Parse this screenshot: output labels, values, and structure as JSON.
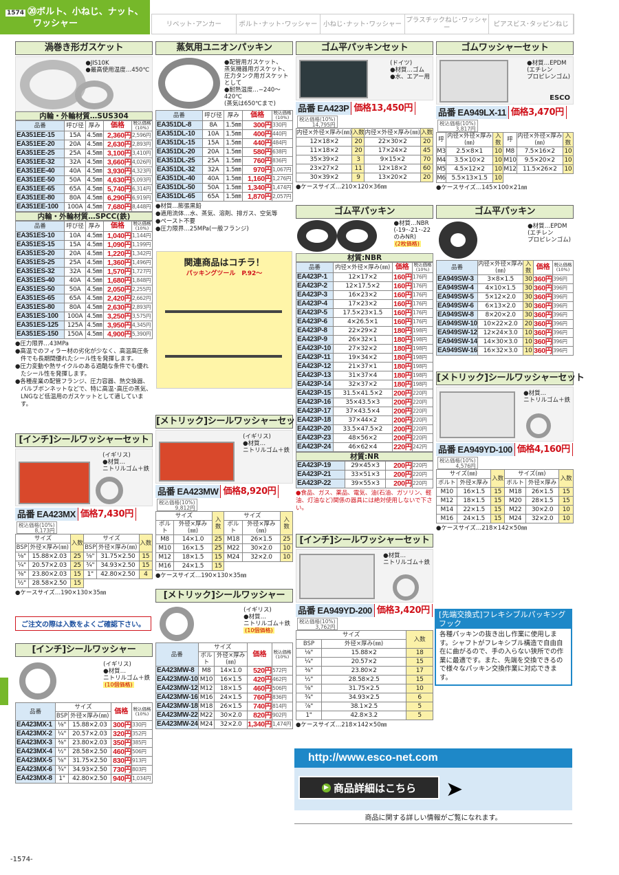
{
  "header": {
    "page": "1574",
    "category": "⑳ボルト、小ねじ、ナット、",
    "category2": "ワッシャー"
  },
  "nav": [
    "リベット･アンカー",
    "ボルト･ナット･ワッシャー",
    "小ねじ･ナット･ワッシャー",
    "プラスチックねじ･ワッシャー",
    "ピアスビス･タッピンねじ"
  ],
  "gasket": {
    "title": "渦巻き形ガスケット",
    "notes": [
      "●JIS10K",
      "●最高使用温度…450℃"
    ],
    "img_labels": [
      "EE",
      "ES"
    ],
    "sub1": "内輪・外輪材質…SUS304",
    "sub2": "内輪・外輪材質…SPCC(鉄)",
    "cols": [
      "品番",
      "呼び径",
      "厚み",
      "価格",
      "税込価格(10%)"
    ],
    "rows1": [
      [
        "EA351EE-15",
        "15A",
        "4.5㎜",
        "2,360円",
        "2,596円"
      ],
      [
        "EA351EE-20",
        "20A",
        "4.5㎜",
        "2,630円",
        "2,893円"
      ],
      [
        "EA351EE-25",
        "25A",
        "4.5㎜",
        "3,100円",
        "3,410円"
      ],
      [
        "EA351EE-32",
        "32A",
        "4.5㎜",
        "3,660円",
        "4,026円"
      ],
      [
        "EA351EE-40",
        "40A",
        "4.5㎜",
        "3,930円",
        "4,323円"
      ],
      [
        "EA351EE-50",
        "50A",
        "4.5㎜",
        "4,630円",
        "5,093円"
      ],
      [
        "EA351EE-65",
        "65A",
        "4.5㎜",
        "5,740円",
        "6,314円"
      ],
      [
        "EA351EE-80",
        "80A",
        "4.5㎜",
        "6,290円",
        "6,919円"
      ],
      [
        "EA351EE-100",
        "100A",
        "4.5㎜",
        "7,680円",
        "8,448円"
      ]
    ],
    "rows2": [
      [
        "EA351ES-10",
        "10A",
        "4.5㎜",
        "1,040円",
        "1,144円"
      ],
      [
        "EA351ES-15",
        "15A",
        "4.5㎜",
        "1,090円",
        "1,199円"
      ],
      [
        "EA351ES-20",
        "20A",
        "4.5㎜",
        "1,220円",
        "1,342円"
      ],
      [
        "EA351ES-25",
        "25A",
        "4.5㎜",
        "1,360円",
        "1,496円"
      ],
      [
        "EA351ES-32",
        "32A",
        "4.5㎜",
        "1,570円",
        "1,727円"
      ],
      [
        "EA351ES-40",
        "40A",
        "4.5㎜",
        "1,680円",
        "1,848円"
      ],
      [
        "EA351ES-50",
        "50A",
        "4.5㎜",
        "2,050円",
        "2,255円"
      ],
      [
        "EA351ES-65",
        "65A",
        "4.5㎜",
        "2,420円",
        "2,662円"
      ],
      [
        "EA351ES-80",
        "80A",
        "4.5㎜",
        "2,630円",
        "2,893円"
      ],
      [
        "EA351ES-100",
        "100A",
        "4.5㎜",
        "3,250円",
        "3,575円"
      ],
      [
        "EA351ES-125",
        "125A",
        "4.5㎜",
        "3,950円",
        "4,345円"
      ],
      [
        "EA351ES-150",
        "150A",
        "4.5㎜",
        "4,900円",
        "5,390円"
      ]
    ],
    "bullets": [
      "●圧力限界…43MPa",
      "●高温でのフィラー材の劣化が少なく、高温高圧条件でも長期間優れたシール性を発揮します。",
      "●圧力変動や熱サイクルのある過酷な条件でも優れたシール性を発揮します。",
      "●各種産業の配管フランジ、圧力容器、熱交換器、バルブボンネットなどで、特に高温･高圧の蒸気、LNGなど低温用のガスケットとして適しています。"
    ]
  },
  "union": {
    "title": "蒸気用ユニオンパッキン",
    "notes": [
      "●配管用ガスケット、",
      "蒸気機器用ガスケット、",
      "圧力タンク用ガスケット",
      "として",
      "●耐熱温度…−240〜420℃",
      "(蒸気は650℃まで)"
    ],
    "cols": [
      "品番",
      "呼び径",
      "厚み",
      "価格",
      "税込価格(10%)"
    ],
    "rows": [
      [
        "EA351DL-8",
        "8A",
        "1.5㎜",
        "300円",
        "330円"
      ],
      [
        "EA351DL-10",
        "10A",
        "1.5㎜",
        "400円",
        "440円"
      ],
      [
        "EA351DL-15",
        "15A",
        "1.5㎜",
        "440円",
        "484円"
      ],
      [
        "EA351DL-20",
        "20A",
        "1.5㎜",
        "580円",
        "638円"
      ],
      [
        "EA351DL-25",
        "25A",
        "1.5㎜",
        "760円",
        "836円"
      ],
      [
        "EA351DL-32",
        "32A",
        "1.5㎜",
        "970円",
        "1,067円"
      ],
      [
        "EA351DL-40",
        "40A",
        "1.5㎜",
        "1,160円",
        "1,276円"
      ],
      [
        "EA351DL-50",
        "50A",
        "1.5㎜",
        "1,340円",
        "1,474円"
      ],
      [
        "EA351DL-65",
        "65A",
        "1.5㎜",
        "1,870円",
        "2,057円"
      ]
    ],
    "bullets": [
      "●材質…膨張黒鉛",
      "●適用流体…水、蒸気、溶剤、排ガス、空気等",
      "●ペースト不要",
      "●圧力限界…25MPa(一般フランジ)"
    ]
  },
  "related": {
    "title": "関連商品はコチラ！",
    "sub": "パッキングツール　P.92〜"
  },
  "packset": {
    "title": "ゴム平パッキンセット",
    "origin": "(ドイツ)",
    "notes": [
      "●材質…ゴム",
      "●水、エアー用"
    ],
    "pn_label": "品番",
    "pn": "EA423P",
    "price_label": "価格",
    "price": "13,450円",
    "tax_label": "税込価格(10%)",
    "tax": "14,795円",
    "cols": [
      "内径×外径×厚み(㎜)",
      "入数",
      "内径×外径×厚み(㎜)",
      "入数"
    ],
    "rows": [
      [
        "12×18×2",
        "20",
        "22×30×2",
        "20"
      ],
      [
        "11×18×2",
        "20",
        "17×24×2",
        "45"
      ],
      [
        "35×39×2",
        "3",
        "9×15×2",
        "70"
      ],
      [
        "23×27×2",
        "11",
        "12×18×2",
        "60"
      ],
      [
        "30×39×2",
        "9",
        "13×20×2",
        "20"
      ]
    ],
    "case": "●ケースサイズ…210×120×36㎜"
  },
  "washerset": {
    "title": "ゴムワッシャーセット",
    "notes": [
      "●材質…EPDM",
      "(エチレン",
      "プロピレンゴム)"
    ],
    "brand": "ESCO",
    "pn_label": "品番",
    "pn": "EA949LX-11",
    "price_label": "価格",
    "price": "3,470円",
    "tax_label": "税込価格(10%)",
    "tax": "3,817円",
    "cols": [
      "呼",
      "内径×外径×厚み(㎜)",
      "入数",
      "呼",
      "内径×外径×厚み(㎜)",
      "入数"
    ],
    "rows": [
      [
        "M3",
        "2.5×8×1",
        "10",
        "M8",
        "7.5×16×2",
        "10"
      ],
      [
        "M4",
        "3.5×10×2",
        "10",
        "M10",
        "9.5×20×2",
        "10"
      ],
      [
        "M5",
        "4.5×12×2",
        "10",
        "M12",
        "11.5×26×2",
        "10"
      ],
      [
        "M6",
        "5.5×13×1.5",
        "10",
        "",
        "",
        ""
      ]
    ],
    "case": "●ケースサイズ…145×100×21㎜"
  },
  "flatpack": {
    "title": "ゴム平パッキン",
    "notes": [
      "●材質…NBR",
      "(-19･-21･-22",
      "のみNR)"
    ],
    "badge": "(2枚価格)",
    "mat1": "材質:NBR",
    "mat2": "材質:NR",
    "cols": [
      "品番",
      "内径×外径×厚み(㎜)",
      "価格",
      "税込価格(10%)"
    ],
    "rows1": [
      [
        "EA423P-1",
        "12×17×2",
        "160円",
        "176円"
      ],
      [
        "EA423P-2",
        "12×17.5×2",
        "160円",
        "176円"
      ],
      [
        "EA423P-3",
        "16×23×2",
        "160円",
        "176円"
      ],
      [
        "EA423P-4",
        "17×23×2",
        "160円",
        "176円"
      ],
      [
        "EA423P-5",
        "17.5×23×1.5",
        "160円",
        "176円"
      ],
      [
        "EA423P-6",
        "4×26.5×1",
        "160円",
        "176円"
      ],
      [
        "EA423P-8",
        "22×29×2",
        "180円",
        "198円"
      ],
      [
        "EA423P-9",
        "26×32×1",
        "180円",
        "198円"
      ],
      [
        "EA423P-10",
        "27×32×2",
        "180円",
        "198円"
      ],
      [
        "EA423P-11",
        "19×34×2",
        "180円",
        "198円"
      ],
      [
        "EA423P-12",
        "21×37×1",
        "180円",
        "198円"
      ],
      [
        "EA423P-13",
        "31×37×4",
        "180円",
        "198円"
      ],
      [
        "EA423P-14",
        "32×37×2",
        "180円",
        "198円"
      ],
      [
        "EA423P-15",
        "31.5×41.5×2",
        "200円",
        "220円"
      ],
      [
        "EA423P-16",
        "35×43.5×3",
        "200円",
        "220円"
      ],
      [
        "EA423P-17",
        "37×43.5×4",
        "200円",
        "220円"
      ],
      [
        "EA423P-18",
        "37×44×2",
        "200円",
        "220円"
      ],
      [
        "EA423P-20",
        "33.5×47.5×2",
        "200円",
        "220円"
      ],
      [
        "EA423P-23",
        "48×56×2",
        "200円",
        "220円"
      ],
      [
        "EA423P-24",
        "46×62×4",
        "220円",
        "242円"
      ]
    ],
    "rows2": [
      [
        "EA423P-19",
        "29×45×3",
        "200円",
        "220円"
      ],
      [
        "EA423P-21",
        "33×51×3",
        "200円",
        "220円"
      ],
      [
        "EA423P-22",
        "39×55×3",
        "200円",
        "220円"
      ]
    ],
    "warn": "●食品、ガス、薬品、電気、油(石油、ガソリン、軽油、灯油など)関係の器具には絶対使用しないで下さい。"
  },
  "epdmpack": {
    "title": "ゴム平パッキン",
    "notes": [
      "●材質…EPDM",
      "(エチレン",
      "プロピレンゴム)"
    ],
    "cols": [
      "品番",
      "内径×外径×厚み(㎜)",
      "入数",
      "価格",
      "税込価格(10%)"
    ],
    "rows": [
      [
        "EA949SW-3",
        "3×8×1.5",
        "30",
        "360円",
        "396円"
      ],
      [
        "EA949SW-4",
        "4×10×1.5",
        "30",
        "360円",
        "396円"
      ],
      [
        "EA949SW-5",
        "5×12×2.0",
        "30",
        "360円",
        "396円"
      ],
      [
        "EA949SW-6",
        "6×13×2.0",
        "30",
        "360円",
        "396円"
      ],
      [
        "EA949SW-8",
        "8×20×2.0",
        "30",
        "360円",
        "396円"
      ],
      [
        "EA949SW-10",
        "10×22×2.0",
        "20",
        "360円",
        "396円"
      ],
      [
        "EA949SW-12",
        "12×24×3.0",
        "10",
        "360円",
        "396円"
      ],
      [
        "EA949SW-14",
        "14×30×3.0",
        "10",
        "360円",
        "396円"
      ],
      [
        "EA949SW-16",
        "16×32×3.0",
        "10",
        "360円",
        "396円"
      ]
    ]
  },
  "inchset": {
    "title": "[インチ]シールワッシャーセット",
    "origin": "(イギリス)",
    "notes": [
      "●材質…",
      "ニトリルゴム＋鉄"
    ],
    "pn_label": "品番",
    "pn": "EA423MX",
    "price_label": "価格",
    "price": "7,430円",
    "tax_label": "税込価格(10%)",
    "tax": "8,173円",
    "top": [
      "サイズ",
      "入数",
      "サイズ",
      "入数"
    ],
    "cols": [
      "BSP",
      "外径×厚み(㎜)",
      "BSP",
      "外径×厚み(㎜)"
    ],
    "rows": [
      [
        "⅛\"",
        "15.88×2.03",
        "25",
        "⅝\"",
        "31.75×2.50",
        "15"
      ],
      [
        "¼\"",
        "20.57×2.03",
        "25",
        "¾\"",
        "34.93×2.50",
        "15"
      ],
      [
        "⅜\"",
        "23.80×2.03",
        "15",
        "1\"",
        "42.80×2.50",
        "4"
      ],
      [
        "½\"",
        "28.58×2.50",
        "15",
        "",
        "",
        ""
      ]
    ],
    "case": "●ケースサイズ…190×130×35㎜",
    "attention": "ご注文の際は入数をよくご確認下さい。"
  },
  "metset": {
    "title": "[メトリック]シールワッシャーセット",
    "origin": "(イギリス)",
    "notes": [
      "●材質…",
      "ニトリルゴム＋鉄"
    ],
    "pn_label": "品番",
    "pn": "EA423MW",
    "price_label": "価格",
    "price": "8,920円",
    "tax_label": "税込価格(10%)",
    "tax": "9,812円",
    "top": [
      "サイズ",
      "入数",
      "サイズ",
      "入数"
    ],
    "cols": [
      "ボルト",
      "外径×厚み(㎜)",
      "ボルト",
      "外径×厚み(㎜)"
    ],
    "rows": [
      [
        "M8",
        "14×1.0",
        "25",
        "M18",
        "26×1.5",
        "25"
      ],
      [
        "M10",
        "16×1.5",
        "25",
        "M22",
        "30×2.0",
        "10"
      ],
      [
        "M12",
        "18×1.5",
        "15",
        "M24",
        "32×2.0",
        "10"
      ],
      [
        "M16",
        "24×1.5",
        "15",
        "",
        "",
        ""
      ]
    ],
    "case": "●ケースサイズ…190×130×35㎜"
  },
  "metset2": {
    "title": "[メトリック]シールワッシャーセット",
    "notes": [
      "●材質…",
      "ニトリルゴム＋鉄"
    ],
    "pn_label": "品番",
    "pn": "EA949YD-100",
    "price_label": "価格",
    "price": "4,160円",
    "tax_label": "税込価格(10%)",
    "tax": "4,576円",
    "top": [
      "サイズ(㎜)",
      "入数",
      "サイズ(㎜)",
      "入数"
    ],
    "cols": [
      "ボルト",
      "外径×厚み",
      "ボルト",
      "外径×厚み"
    ],
    "rows": [
      [
        "M10",
        "16×1.5",
        "15",
        "M18",
        "26×1.5",
        "15"
      ],
      [
        "M12",
        "18×1.5",
        "15",
        "M20",
        "28×1.5",
        "15"
      ],
      [
        "M14",
        "22×1.5",
        "15",
        "M22",
        "30×2.0",
        "10"
      ],
      [
        "M16",
        "24×1.5",
        "15",
        "M24",
        "32×2.0",
        "10"
      ]
    ],
    "case": "●ケースサイズ…218×142×50㎜"
  },
  "inchset2": {
    "title": "[インチ]シールワッシャーセット",
    "notes": [
      "●材質…",
      "ニトリルゴム＋鉄"
    ],
    "pn_label": "品番",
    "pn": "EA949YD-200",
    "price_label": "価格",
    "price": "3,420円",
    "tax_label": "税込価格(10%)",
    "tax": "3,762円",
    "top": [
      "サイズ",
      "入数"
    ],
    "cols": [
      "BSP",
      "外径×厚み(㎜)"
    ],
    "rows": [
      [
        "⅛\"",
        "15.88×2",
        "18"
      ],
      [
        "¼\"",
        "20.57×2",
        "15"
      ],
      [
        "⅜\"",
        "23.80×2",
        "17"
      ],
      [
        "½\"",
        "28.58×2.5",
        "15"
      ],
      [
        "⅝\"",
        "31.75×2.5",
        "10"
      ],
      [
        "¾\"",
        "34.93×2.5",
        "6"
      ],
      [
        "⅞\"",
        "38.1×2.5",
        "5"
      ],
      [
        "1\"",
        "42.8×3.2",
        "5"
      ]
    ],
    "case": "●ケースサイズ…218×142×50㎜"
  },
  "metwasher": {
    "title": "[メトリック]シールワッシャー",
    "origin": "(イギリス)",
    "notes": [
      "●材質…",
      "ニトリルゴム＋鉄"
    ],
    "badge": "(10個価格)",
    "top": [
      "品番",
      "サイズ",
      "価格",
      "税込価格(10%)"
    ],
    "cols": [
      "ボルト",
      "外径×厚み(㎜)"
    ],
    "rows": [
      [
        "EA423MW-8",
        "M8",
        "14×1.0",
        "520円",
        "572円"
      ],
      [
        "EA423MW-10",
        "M10",
        "16×1.5",
        "420円",
        "462円"
      ],
      [
        "EA423MW-12",
        "M12",
        "18×1.5",
        "460円",
        "506円"
      ],
      [
        "EA423MW-16",
        "M16",
        "24×1.5",
        "760円",
        "836円"
      ],
      [
        "EA423MW-18",
        "M18",
        "26×1.5",
        "740円",
        "814円"
      ],
      [
        "EA423MW-22",
        "M22",
        "30×2.0",
        "820円",
        "902円"
      ],
      [
        "EA423MW-24",
        "M24",
        "32×2.0",
        "1,340円",
        "1,474円"
      ]
    ]
  },
  "inchwasher": {
    "title": "[インチ]シールワッシャー",
    "origin": "(イギリス)",
    "notes": [
      "●材質…",
      "ニトリルゴム＋鉄"
    ],
    "badge": "(10個価格)",
    "top": [
      "品番",
      "サイズ",
      "価格",
      "税込価格(10%)"
    ],
    "cols": [
      "BSP",
      "外径×厚み(㎜)"
    ],
    "rows": [
      [
        "EA423MX-1",
        "⅛\"",
        "15.88×2.03",
        "300円",
        "330円"
      ],
      [
        "EA423MX-2",
        "¼\"",
        "20.57×2.03",
        "320円",
        "352円"
      ],
      [
        "EA423MX-3",
        "⅜\"",
        "23.80×2.03",
        "350円",
        "385円"
      ],
      [
        "EA423MX-4",
        "½\"",
        "28.58×2.50",
        "460円",
        "506円"
      ],
      [
        "EA423MX-5",
        "⅝\"",
        "31.75×2.50",
        "830円",
        "913円"
      ],
      [
        "EA423MX-6",
        "¾\"",
        "34.93×2.50",
        "730円",
        "803円"
      ],
      [
        "EA423MX-8",
        "1\"",
        "42.80×2.50",
        "940円",
        "1,034円"
      ]
    ]
  },
  "hook": {
    "title": "[先端交換式]フレキシブルパッキングフック",
    "body": "各種パッキンの抜き出し作業に使用します。シャフトがフレキシブル構造で自由自在に曲がるので、手の入らない狭所での作業に最適です。また、先端を交換できるので様々なパッキン交換作業に対応できます。"
  },
  "footer": {
    "url": "http://www.esco-net.com",
    "button": "商品詳細はこちら",
    "info": "商品に関する詳しい情報がご覧になれます。",
    "page_number": "-1574-"
  },
  "colors": {
    "accent_green": "#76b82a",
    "price_red": "#d0121b",
    "pn_blue": "#d7e8f6",
    "qty_yellow": "#fbf1a8",
    "link_blue": "#1e88c8"
  }
}
